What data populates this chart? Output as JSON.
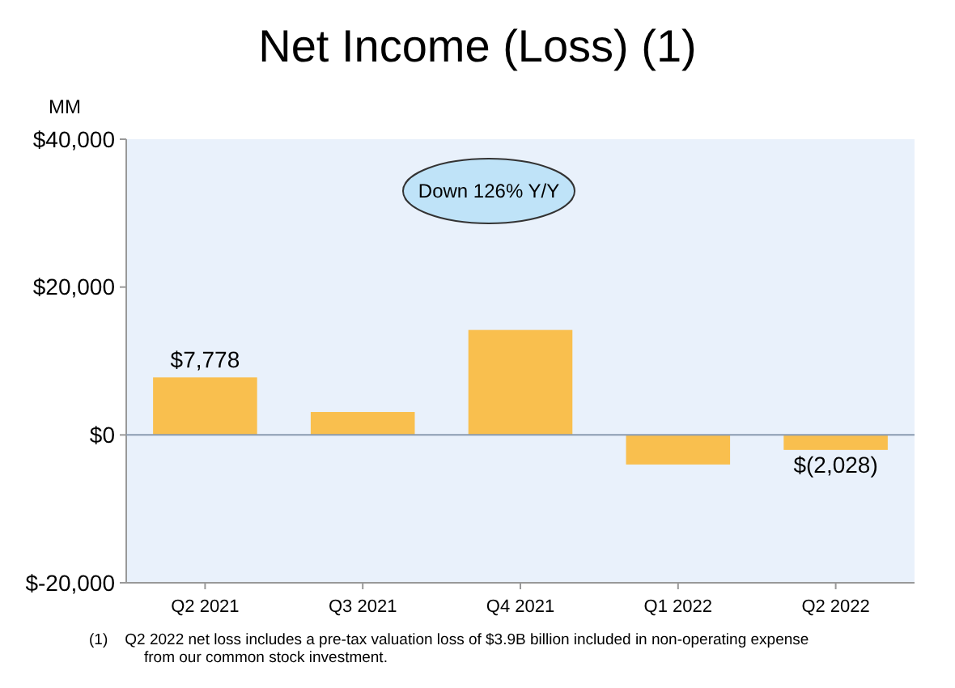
{
  "chart_data": {
    "type": "bar",
    "title": "Net Income (Loss) (1)",
    "ylabel": "MM",
    "categories": [
      "Q2 2021",
      "Q3 2021",
      "Q4 2021",
      "Q1 2022",
      "Q2 2022"
    ],
    "values": [
      7778,
      3100,
      14200,
      -4000,
      -2028
    ],
    "color": "#f9bf4e",
    "value_labels": [
      "$7,778",
      null,
      null,
      null,
      "$(2,028)"
    ],
    "ylim": [
      -20000,
      40000
    ],
    "yticks": [
      {
        "value": -20000,
        "label": "$-20,000"
      },
      {
        "value": 0,
        "label": "$0"
      },
      {
        "value": 20000,
        "label": "$20,000"
      },
      {
        "value": 40000,
        "label": "$40,000"
      }
    ],
    "ref_lines": [
      {
        "axis": "y",
        "value": 0,
        "color": "#8a9bb0"
      }
    ],
    "annotations": [
      "Down 126% Y/Y",
      "(1)    Q2 2022 net loss includes a pre-tax valuation loss of $3.9B billion included in non-operating expense from our common stock investment."
    ]
  }
}
